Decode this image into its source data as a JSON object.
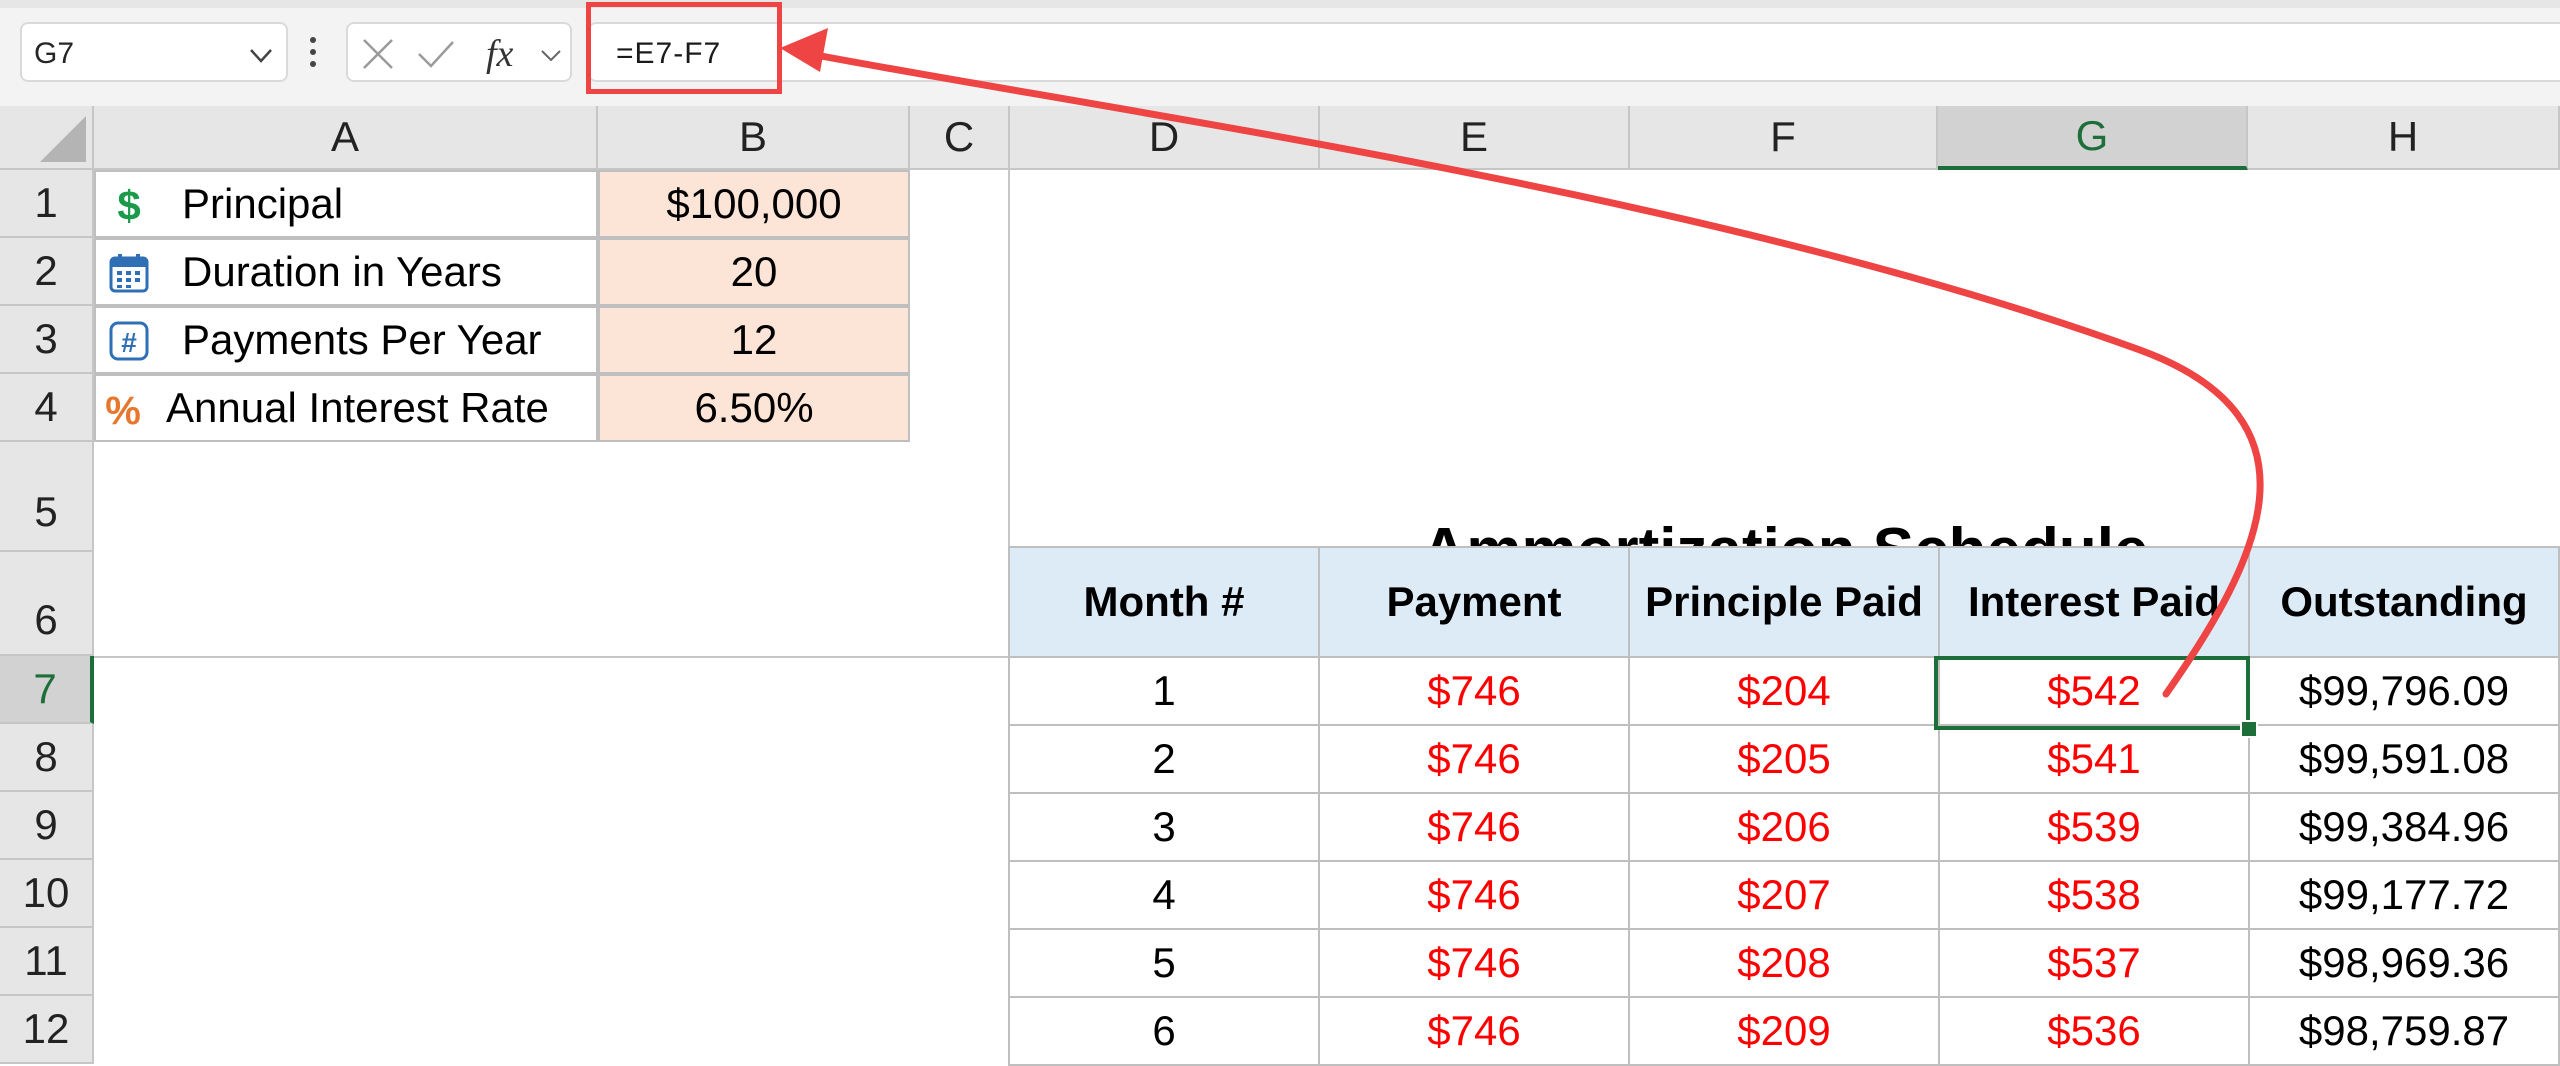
{
  "formula_bar": {
    "name_box": "G7",
    "formula": "=E7-F7",
    "fx_label": "fx"
  },
  "columns": [
    "A",
    "B",
    "C",
    "D",
    "E",
    "F",
    "G",
    "H"
  ],
  "rows": [
    "1",
    "2",
    "3",
    "4",
    "5",
    "6",
    "7",
    "8",
    "9",
    "10",
    "11",
    "12"
  ],
  "inputs": [
    {
      "label": "Principal",
      "value": "$100,000",
      "icon": "dollar-icon"
    },
    {
      "label": "Duration in Years",
      "value": "20",
      "icon": "calendar-icon"
    },
    {
      "label": "Payments Per Year",
      "value": "12",
      "icon": "hash-icon"
    },
    {
      "label": "Annual Interest Rate",
      "value": "6.50%",
      "icon": "percent-icon"
    }
  ],
  "schedule": {
    "title": "Ammortization Schedule",
    "headers": [
      "Month #",
      "Payment",
      "Principle Paid",
      "Interest Paid",
      "Outstanding"
    ],
    "rows": [
      [
        "1",
        "$746",
        "$204",
        "$542",
        "$99,796.09"
      ],
      [
        "2",
        "$746",
        "$205",
        "$541",
        "$99,591.08"
      ],
      [
        "3",
        "$746",
        "$206",
        "$539",
        "$99,384.96"
      ],
      [
        "4",
        "$746",
        "$207",
        "$538",
        "$99,177.72"
      ],
      [
        "5",
        "$746",
        "$208",
        "$537",
        "$98,969.36"
      ],
      [
        "6",
        "$746",
        "$209",
        "$536",
        "$98,759.87"
      ]
    ]
  },
  "colors": {
    "input_fill": "#fce4d6",
    "header_fill": "#ddebf7",
    "negative_red": "#ff0000",
    "selection_green": "#1e6e3a",
    "annotation_red": "#ef4444"
  }
}
